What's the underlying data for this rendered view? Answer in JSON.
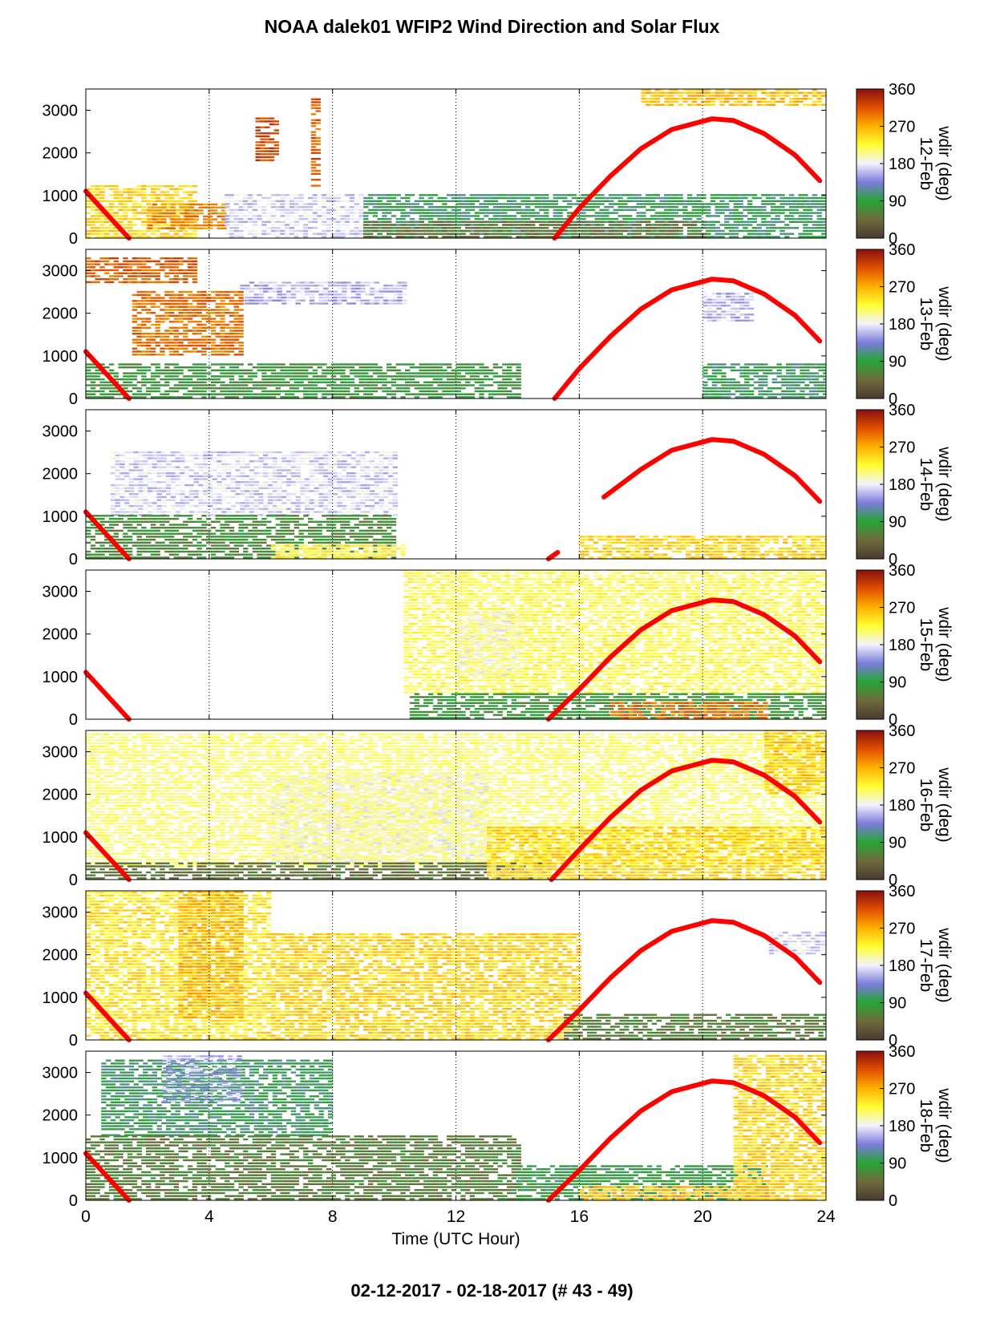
{
  "figure": {
    "title": "NOAA dalek01 WFIP2 Wind Direction and Solar Flux",
    "footer": "02-12-2017 - 02-18-2017    (# 43 - 49)"
  },
  "chart_data": {
    "type": "heatmap",
    "xlabel": "Time (UTC Hour)",
    "xlim": [
      0,
      24
    ],
    "xticks": [
      0,
      4,
      8,
      12,
      16,
      20,
      24
    ],
    "ylim": [
      0,
      3500
    ],
    "yticks": [
      0,
      1000,
      2000,
      3000
    ],
    "grid": "dotted vertical lines at 4, 8, 12, 16, 20 hours",
    "colorbar": {
      "label": "wdir (deg)",
      "ticks": [
        0,
        90,
        180,
        270,
        360
      ],
      "range": [
        0,
        360
      ],
      "colors": [
        "#4a3b30",
        "#6f6b3c",
        "#27a536",
        "#7b7bdc",
        "#f2f2ff",
        "#ffff33",
        "#ffb000",
        "#e05000",
        "#8a1010"
      ]
    },
    "solar_flux_color": "#ff0000",
    "panels": [
      {
        "date": "12-Feb",
        "solar_flux": {
          "morning": [
            [
              0,
              1100
            ],
            [
              1.4,
              0
            ]
          ],
          "afternoon": [
            [
              15.2,
              0
            ],
            [
              16,
              700
            ],
            [
              17,
              1450
            ],
            [
              18,
              2100
            ],
            [
              19,
              2550
            ],
            [
              20.3,
              2800
            ],
            [
              21,
              2760
            ],
            [
              22,
              2450
            ],
            [
              23,
              1950
            ],
            [
              23.8,
              1350
            ]
          ]
        },
        "regions": [
          {
            "t0": 0,
            "t1": 3.5,
            "h0": 0,
            "h1": 1200,
            "wdir": 250
          },
          {
            "t0": 2,
            "t1": 4.5,
            "h0": 200,
            "h1": 800,
            "wdir": 290
          },
          {
            "t0": 4.5,
            "t1": 9,
            "h0": 0,
            "h1": 1000,
            "wdir": 170
          },
          {
            "t0": 9,
            "t1": 24,
            "h0": 0,
            "h1": 1000,
            "wdir": 100
          },
          {
            "t0": 9,
            "t1": 20,
            "h0": 0,
            "h1": 400,
            "wdir": 50
          },
          {
            "t0": 5.5,
            "t1": 6.2,
            "h0": 1800,
            "h1": 2800,
            "wdir": 320
          },
          {
            "t0": 7.3,
            "t1": 7.6,
            "h0": 1200,
            "h1": 3300,
            "wdir": 310
          },
          {
            "t0": 18,
            "t1": 24,
            "h0": 3100,
            "h1": 3500,
            "wdir": 260
          }
        ]
      },
      {
        "date": "13-Feb",
        "solar_flux": {
          "morning": [
            [
              0,
              1100
            ],
            [
              1.4,
              0
            ]
          ],
          "afternoon": [
            [
              15.2,
              0
            ],
            [
              16,
              700
            ],
            [
              17,
              1450
            ],
            [
              18,
              2100
            ],
            [
              19,
              2550
            ],
            [
              20.3,
              2800
            ],
            [
              21,
              2760
            ],
            [
              22,
              2450
            ],
            [
              23,
              1950
            ],
            [
              23.8,
              1350
            ]
          ]
        },
        "regions": [
          {
            "t0": 0,
            "t1": 3.5,
            "h0": 2700,
            "h1": 3300,
            "wdir": 310
          },
          {
            "t0": 0,
            "t1": 14,
            "h0": 0,
            "h1": 800,
            "wdir": 80
          },
          {
            "t0": 5,
            "t1": 10.3,
            "h0": 2200,
            "h1": 2700,
            "wdir": 160
          },
          {
            "t0": 1.5,
            "t1": 5,
            "h0": 1000,
            "h1": 2500,
            "wdir": 300
          },
          {
            "t0": 20,
            "t1": 24,
            "h0": 0,
            "h1": 800,
            "wdir": 100
          },
          {
            "t0": 20,
            "t1": 21.5,
            "h0": 1800,
            "h1": 2500,
            "wdir": 160
          }
        ]
      },
      {
        "date": "14-Feb",
        "solar_flux": {
          "morning": [
            [
              0,
              1100
            ],
            [
              1.4,
              0
            ]
          ],
          "afternoon": [
            [
              15,
              0
            ],
            [
              15.3,
              150
            ]
          ],
          "late": [
            [
              16.8,
              1450
            ],
            [
              18,
              2100
            ],
            [
              19,
              2550
            ],
            [
              20.3,
              2800
            ],
            [
              21,
              2760
            ],
            [
              22,
              2450
            ],
            [
              23,
              1950
            ],
            [
              23.8,
              1350
            ]
          ]
        },
        "regions": [
          {
            "t0": 0.8,
            "t1": 10,
            "h0": 1000,
            "h1": 2500,
            "wdir": 170
          },
          {
            "t0": 0,
            "t1": 10,
            "h0": 0,
            "h1": 1000,
            "wdir": 70
          },
          {
            "t0": 6,
            "t1": 10.3,
            "h0": 0,
            "h1": 300,
            "wdir": 230
          },
          {
            "t0": 16,
            "t1": 24,
            "h0": 0,
            "h1": 500,
            "wdir": 250
          }
        ]
      },
      {
        "date": "15-Feb",
        "solar_flux": {
          "morning": [
            [
              0,
              1100
            ],
            [
              1.4,
              0
            ]
          ],
          "afternoon": [
            [
              15,
              0
            ],
            [
              16,
              700
            ],
            [
              17,
              1450
            ],
            [
              18,
              2100
            ],
            [
              19,
              2550
            ],
            [
              20.3,
              2800
            ],
            [
              21,
              2760
            ],
            [
              22,
              2450
            ],
            [
              23,
              1950
            ],
            [
              23.8,
              1350
            ]
          ]
        },
        "regions": [
          {
            "t0": 10.3,
            "t1": 24,
            "h0": 600,
            "h1": 3500,
            "wdir": 220
          },
          {
            "t0": 12,
            "t1": 14,
            "h0": 1000,
            "h1": 2500,
            "wdir": 190
          },
          {
            "t0": 10.5,
            "t1": 24,
            "h0": 0,
            "h1": 600,
            "wdir": 80
          },
          {
            "t0": 17,
            "t1": 22,
            "h0": 0,
            "h1": 400,
            "wdir": 300
          }
        ]
      },
      {
        "date": "16-Feb",
        "solar_flux": {
          "morning": [
            [
              0,
              1100
            ],
            [
              1.4,
              0
            ]
          ],
          "afternoon": [
            [
              15.1,
              0
            ],
            [
              16,
              700
            ],
            [
              17,
              1450
            ],
            [
              18,
              2100
            ],
            [
              19,
              2550
            ],
            [
              20.3,
              2800
            ],
            [
              21,
              2760
            ],
            [
              22,
              2450
            ],
            [
              23,
              1950
            ],
            [
              23.8,
              1350
            ]
          ]
        },
        "regions": [
          {
            "t0": 0,
            "t1": 24,
            "h0": 300,
            "h1": 3400,
            "wdir": 210
          },
          {
            "t0": 6,
            "t1": 13,
            "h0": 400,
            "h1": 2500,
            "wdir": 190
          },
          {
            "t0": 0,
            "t1": 15,
            "h0": 0,
            "h1": 400,
            "wdir": 50
          },
          {
            "t0": 13,
            "t1": 24,
            "h0": 0,
            "h1": 1200,
            "wdir": 250
          },
          {
            "t0": 22,
            "t1": 24,
            "h0": 2000,
            "h1": 3500,
            "wdir": 255
          }
        ]
      },
      {
        "date": "17-Feb",
        "solar_flux": {
          "morning": [
            [
              0,
              1100
            ],
            [
              1.4,
              0
            ]
          ],
          "afternoon": [
            [
              15,
              0
            ],
            [
              16,
              700
            ],
            [
              17,
              1450
            ],
            [
              18,
              2100
            ],
            [
              19,
              2550
            ],
            [
              20.3,
              2800
            ],
            [
              21,
              2760
            ],
            [
              22,
              2450
            ],
            [
              23,
              1950
            ],
            [
              23.8,
              1350
            ]
          ]
        },
        "regions": [
          {
            "t0": 0,
            "t1": 6,
            "h0": 0,
            "h1": 3500,
            "wdir": 240
          },
          {
            "t0": 3,
            "t1": 5,
            "h0": 500,
            "h1": 3500,
            "wdir": 265
          },
          {
            "t0": 6,
            "t1": 16,
            "h0": 0,
            "h1": 2500,
            "wdir": 250
          },
          {
            "t0": 15.5,
            "t1": 24,
            "h0": 0,
            "h1": 600,
            "wdir": 60
          },
          {
            "t0": 22,
            "t1": 24,
            "h0": 2000,
            "h1": 2500,
            "wdir": 170
          }
        ]
      },
      {
        "date": "18-Feb",
        "solar_flux": {
          "morning": [
            [
              0,
              1100
            ],
            [
              1.4,
              0
            ]
          ],
          "afternoon": [
            [
              15,
              0
            ],
            [
              16,
              700
            ],
            [
              17,
              1450
            ],
            [
              18,
              2100
            ],
            [
              19,
              2550
            ],
            [
              20.3,
              2800
            ],
            [
              21,
              2760
            ],
            [
              22,
              2450
            ],
            [
              23,
              1950
            ],
            [
              23.8,
              1350
            ]
          ]
        },
        "regions": [
          {
            "t0": 0.5,
            "t1": 8,
            "h0": 1500,
            "h1": 3300,
            "wdir": 100
          },
          {
            "t0": 2.5,
            "t1": 5,
            "h0": 2300,
            "h1": 3400,
            "wdir": 160
          },
          {
            "t0": 0,
            "t1": 14,
            "h0": 0,
            "h1": 1500,
            "wdir": 60
          },
          {
            "t0": 14,
            "t1": 22,
            "h0": 0,
            "h1": 800,
            "wdir": 90
          },
          {
            "t0": 21,
            "t1": 24,
            "h0": 0,
            "h1": 3400,
            "wdir": 250
          },
          {
            "t0": 16,
            "t1": 22,
            "h0": 0,
            "h1": 300,
            "wdir": 260
          }
        ]
      }
    ]
  }
}
